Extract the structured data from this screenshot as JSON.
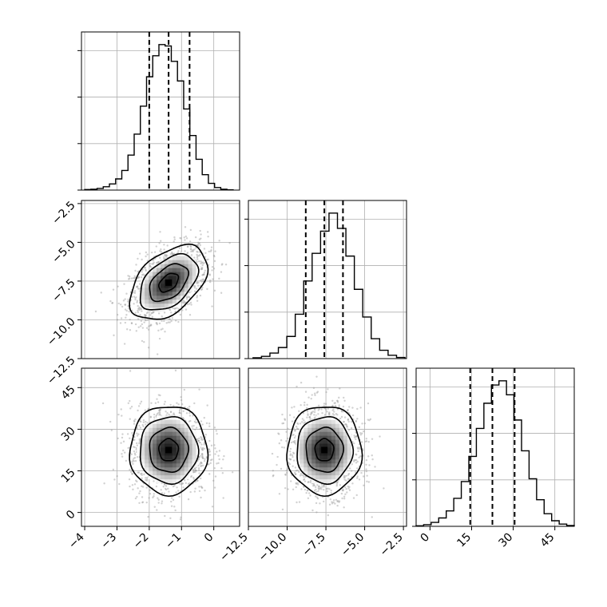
{
  "chart_data": {
    "type": "corner",
    "parameters": [
      {
        "key": "p0",
        "center": -1.4,
        "sd": 0.6,
        "q16": -2.0,
        "q50": -1.4,
        "q84": -0.75,
        "ticks": [
          -4,
          -3,
          -2,
          -1,
          0
        ],
        "tick_labels": [
          "−4",
          "−3",
          "−2",
          "−1",
          "0"
        ],
        "range": [
          -4.1,
          0.8
        ]
      },
      {
        "key": "p1",
        "center": -7.6,
        "sd": 1.2,
        "q16": -8.8,
        "q50": -7.6,
        "q84": -6.4,
        "ticks": [
          -12.5,
          -10.0,
          -7.5,
          -5.0,
          -2.5
        ],
        "tick_labels": [
          "−12.5",
          "−10.0",
          "−7.5",
          "−5.0",
          "−2.5"
        ],
        "range": [
          -12.5,
          -2.3
        ]
      },
      {
        "key": "p2",
        "center": 22.5,
        "sd": 8.0,
        "q16": 14.5,
        "q50": 22.5,
        "q84": 30.5,
        "ticks": [
          0,
          15,
          30,
          45
        ],
        "tick_labels": [
          "0",
          "15",
          "30",
          "45"
        ],
        "range": [
          -5,
          52
        ]
      }
    ],
    "histograms": [
      {
        "param": "p0",
        "bins": [
          -4.0,
          0.6
        ],
        "counts": [
          2,
          3,
          6,
          12,
          22,
          40,
          70,
          125,
          200,
          300,
          405,
          480,
          520,
          515,
          460,
          390,
          290,
          195,
          110,
          55,
          24,
          9,
          3,
          1
        ]
      },
      {
        "param": "p1",
        "bins": [
          -12.2,
          -2.4
        ],
        "counts": [
          3,
          8,
          20,
          40,
          80,
          160,
          280,
          380,
          460,
          525,
          470,
          370,
          250,
          150,
          72,
          30,
          12,
          4
        ]
      },
      {
        "param": "p2",
        "bins": [
          -5,
          52
        ],
        "counts": [
          2,
          6,
          14,
          30,
          55,
          100,
          160,
          250,
          350,
          440,
          505,
          520,
          470,
          380,
          270,
          170,
          95,
          45,
          20,
          8,
          3
        ]
      }
    ],
    "pairs": [
      {
        "x": "p0",
        "y": "p1",
        "rho": 0.45
      },
      {
        "x": "p0",
        "y": "p2",
        "rho": 0.0
      },
      {
        "x": "p1",
        "y": "p2",
        "rho": 0.0
      }
    ],
    "contour_levels_sigma": [
      0.5,
      1.0,
      1.5,
      2.0
    ],
    "grid": true
  }
}
